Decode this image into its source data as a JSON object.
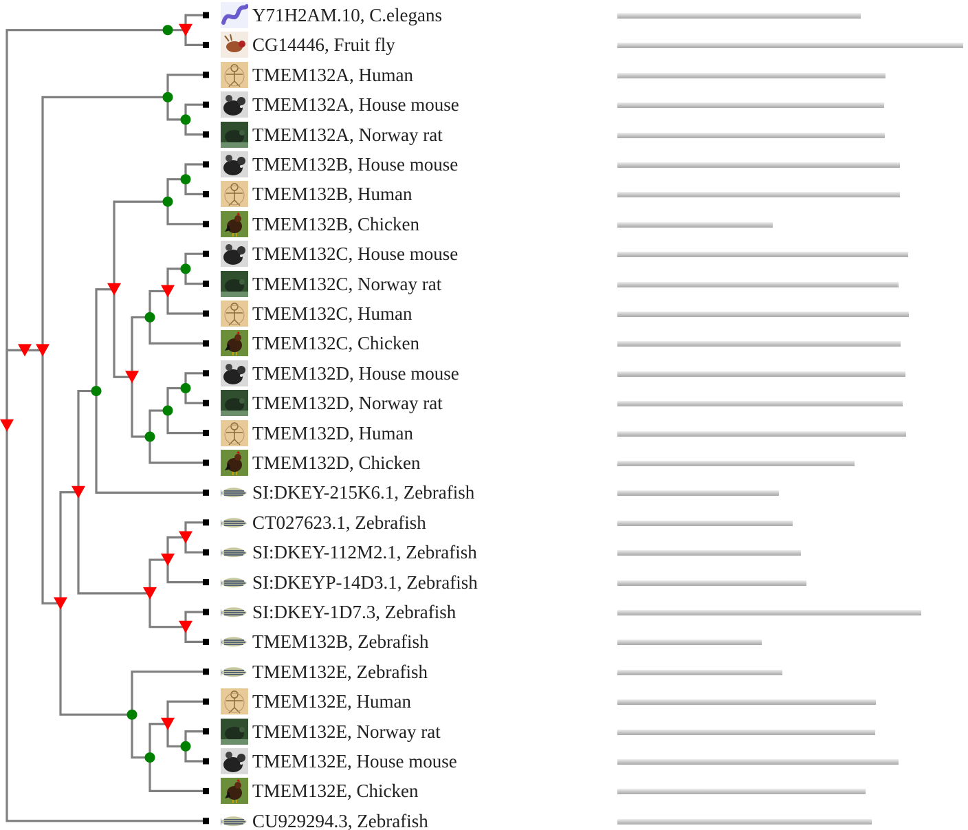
{
  "leaves": [
    {
      "gene": "Y71H2AM.10",
      "species": "C.elegans",
      "icon": "worm-icon",
      "len": 0.703
    },
    {
      "gene": "CG14446",
      "species": "Fruit fly",
      "icon": "fly-icon",
      "len": 1.0
    },
    {
      "gene": "TMEM132A",
      "species": "Human",
      "icon": "human-icon",
      "len": 0.775
    },
    {
      "gene": "TMEM132A",
      "species": "House mouse",
      "icon": "mouse-icon",
      "len": 0.771
    },
    {
      "gene": "TMEM132A",
      "species": "Norway rat",
      "icon": "rat-icon",
      "len": 0.773
    },
    {
      "gene": "TMEM132B",
      "species": "House mouse",
      "icon": "mouse-icon",
      "len": 0.817
    },
    {
      "gene": "TMEM132B",
      "species": "Human",
      "icon": "human-icon",
      "len": 0.817
    },
    {
      "gene": "TMEM132B",
      "species": "Chicken",
      "icon": "chicken-icon",
      "len": 0.45
    },
    {
      "gene": "TMEM132C",
      "species": "House mouse",
      "icon": "mouse-icon",
      "len": 0.84
    },
    {
      "gene": "TMEM132C",
      "species": "Norway rat",
      "icon": "rat-icon",
      "len": 0.813
    },
    {
      "gene": "TMEM132C",
      "species": "Human",
      "icon": "human-icon",
      "len": 0.842
    },
    {
      "gene": "TMEM132C",
      "species": "Chicken",
      "icon": "chicken-icon",
      "len": 0.819
    },
    {
      "gene": "TMEM132D",
      "species": "House mouse",
      "icon": "mouse-icon",
      "len": 0.833
    },
    {
      "gene": "TMEM132D",
      "species": "Norway rat",
      "icon": "rat-icon",
      "len": 0.825
    },
    {
      "gene": "TMEM132D",
      "species": "Human",
      "icon": "human-icon",
      "len": 0.835
    },
    {
      "gene": "TMEM132D",
      "species": "Chicken",
      "icon": "chicken-icon",
      "len": 0.685
    },
    {
      "gene": "SI:DKEY-215K6.1",
      "species": "Zebrafish",
      "icon": "zebrafish-icon",
      "len": 0.467
    },
    {
      "gene": "CT027623.1",
      "species": "Zebrafish",
      "icon": "zebrafish-icon",
      "len": 0.506
    },
    {
      "gene": "SI:DKEY-112M2.1",
      "species": "Zebrafish",
      "icon": "zebrafish-icon",
      "len": 0.53
    },
    {
      "gene": "SI:DKEYP-14D3.1",
      "species": "Zebrafish",
      "icon": "zebrafish-icon",
      "len": 0.546
    },
    {
      "gene": "SI:DKEY-1D7.3",
      "species": "Zebrafish",
      "icon": "zebrafish-icon",
      "len": 0.878
    },
    {
      "gene": "TMEM132B",
      "species": "Zebrafish",
      "icon": "zebrafish-icon",
      "len": 0.418
    },
    {
      "gene": "TMEM132E",
      "species": "Zebrafish",
      "icon": "zebrafish-icon",
      "len": 0.478
    },
    {
      "gene": "TMEM132E",
      "species": "Human",
      "icon": "human-icon",
      "len": 0.747
    },
    {
      "gene": "TMEM132E",
      "species": "Norway rat",
      "icon": "rat-icon",
      "len": 0.745
    },
    {
      "gene": "TMEM132E",
      "species": "House mouse",
      "icon": "mouse-icon",
      "len": 0.813
    },
    {
      "gene": "TMEM132E",
      "species": "Chicken",
      "icon": "chicken-icon",
      "len": 0.717
    },
    {
      "gene": "CU929294.3",
      "species": "Zebrafish",
      "icon": "zebrafish-icon",
      "len": 0.736
    }
  ],
  "tree": {
    "type": "duplication",
    "children": [
      {
        "type": "speciation",
        "children": [
          {
            "type": "duplication",
            "children": [
              {
                "leaf": 0
              },
              {
                "leaf": 1
              }
            ]
          }
        ]
      },
      {
        "type": "duplication",
        "children": [
          {
            "type": "duplication",
            "children": [
              {
                "type": "speciation",
                "children": [
                  {
                    "leaf": 2
                  },
                  {
                    "type": "speciation",
                    "children": [
                      {
                        "leaf": 3
                      },
                      {
                        "leaf": 4
                      }
                    ]
                  }
                ]
              },
              {
                "type": "duplication",
                "children": [
                  {
                    "type": "duplication",
                    "children": [
                      {
                        "type": "speciation",
                        "children": [
                          {
                            "type": "duplication",
                            "children": [
                              {
                                "type": "speciation",
                                "children": [
                                  {
                                    "type": "speciation",
                                    "children": [
                                      {
                                        "leaf": 5
                                      },
                                      {
                                        "leaf": 6
                                      }
                                    ]
                                  },
                                  {
                                    "leaf": 7
                                  }
                                ]
                              },
                              {
                                "type": "duplication",
                                "children": [
                                  {
                                    "type": "speciation",
                                    "children": [
                                      {
                                        "type": "duplication",
                                        "children": [
                                          {
                                            "type": "speciation",
                                            "children": [
                                              {
                                                "leaf": 8
                                              },
                                              {
                                                "leaf": 9
                                              }
                                            ]
                                          },
                                          {
                                            "leaf": 10
                                          }
                                        ]
                                      },
                                      {
                                        "leaf": 11
                                      }
                                    ]
                                  },
                                  {
                                    "type": "speciation",
                                    "children": [
                                      {
                                        "type": "speciation",
                                        "children": [
                                          {
                                            "type": "speciation",
                                            "children": [
                                              {
                                                "leaf": 12
                                              },
                                              {
                                                "leaf": 13
                                              }
                                            ]
                                          },
                                          {
                                            "leaf": 14
                                          }
                                        ]
                                      },
                                      {
                                        "leaf": 15
                                      }
                                    ]
                                  }
                                ]
                              }
                            ]
                          },
                          {
                            "leaf": 16
                          }
                        ]
                      },
                      {
                        "type": "duplication",
                        "children": [
                          {
                            "type": "duplication",
                            "children": [
                              {
                                "type": "duplication",
                                "children": [
                                  {
                                    "leaf": 17
                                  },
                                  {
                                    "leaf": 18
                                  }
                                ]
                              },
                              {
                                "leaf": 19
                              }
                            ]
                          },
                          {
                            "type": "duplication",
                            "children": [
                              {
                                "leaf": 20
                              },
                              {
                                "leaf": 21
                              }
                            ]
                          }
                        ]
                      }
                    ]
                  },
                  {
                    "type": "speciation",
                    "children": [
                      {
                        "leaf": 22
                      },
                      {
                        "type": "speciation",
                        "children": [
                          {
                            "type": "duplication",
                            "children": [
                              {
                                "leaf": 23
                              },
                              {
                                "type": "speciation",
                                "children": [
                                  {
                                    "leaf": 24
                                  },
                                  {
                                    "leaf": 25
                                  }
                                ]
                              }
                            ]
                          },
                          {
                            "leaf": 26
                          }
                        ]
                      }
                    ]
                  }
                ]
              }
            ]
          }
        ]
      },
      {
        "leaf": 27
      }
    ]
  },
  "colors": {
    "branch": "#7f7f7f",
    "speciation": "#008000",
    "duplication": "#ff0000",
    "leaf_marker": "#000000",
    "bar": "#bdbdbd"
  }
}
